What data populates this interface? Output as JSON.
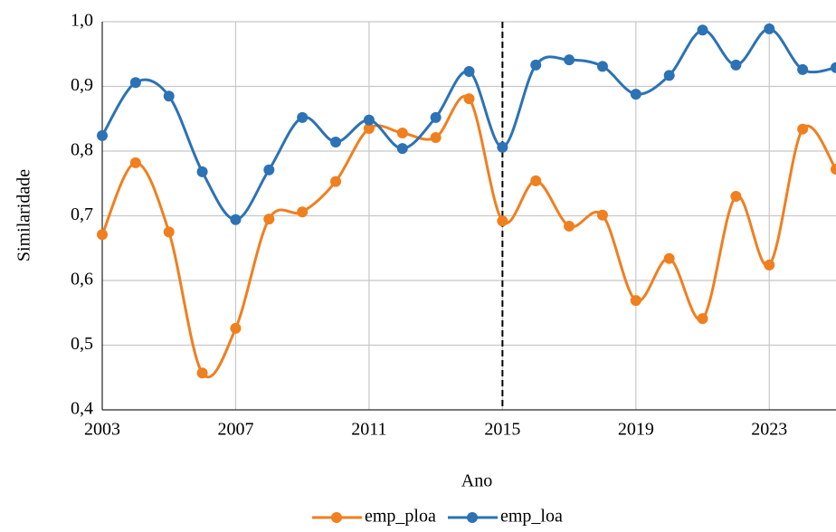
{
  "chart_data": {
    "type": "line",
    "x_label": "Ano",
    "y_label": "Similaridade",
    "x": [
      2003,
      2004,
      2005,
      2006,
      2007,
      2008,
      2009,
      2010,
      2011,
      2012,
      2013,
      2014,
      2015,
      2016,
      2017,
      2018,
      2019,
      2020,
      2021,
      2022,
      2023,
      2024,
      2025
    ],
    "series": [
      {
        "name": "emp_ploa",
        "color": "#f07f1f",
        "values": [
          0.671,
          0.782,
          0.675,
          0.457,
          0.526,
          0.695,
          0.706,
          0.753,
          0.835,
          0.828,
          0.821,
          0.881,
          0.692,
          0.754,
          0.684,
          0.701,
          0.569,
          0.634,
          0.541,
          0.73,
          0.624,
          0.834,
          0.772
        ]
      },
      {
        "name": "emp_loa",
        "color": "#2c72b5",
        "values": [
          0.824,
          0.906,
          0.885,
          0.768,
          0.694,
          0.771,
          0.852,
          0.814,
          0.848,
          0.804,
          0.852,
          0.923,
          0.806,
          0.933,
          0.941,
          0.931,
          0.888,
          0.917,
          0.987,
          0.933,
          0.989,
          0.926,
          0.929
        ]
      }
    ],
    "xlim": [
      2003,
      2025
    ],
    "ylim": [
      0.4,
      1.0
    ],
    "xticks": [
      2003,
      2007,
      2011,
      2015,
      2019,
      2023
    ],
    "yticks": [
      {
        "value": 0.4,
        "label": "0,4"
      },
      {
        "value": 0.5,
        "label": "0,5"
      },
      {
        "value": 0.6,
        "label": "0,6"
      },
      {
        "value": 0.7,
        "label": "0,7"
      },
      {
        "value": 0.8,
        "label": "0,8"
      },
      {
        "value": 0.9,
        "label": "0,9"
      },
      {
        "value": 1.0,
        "label": "1,0"
      }
    ],
    "vline": 2015,
    "grid": true,
    "legend": "bottom"
  }
}
